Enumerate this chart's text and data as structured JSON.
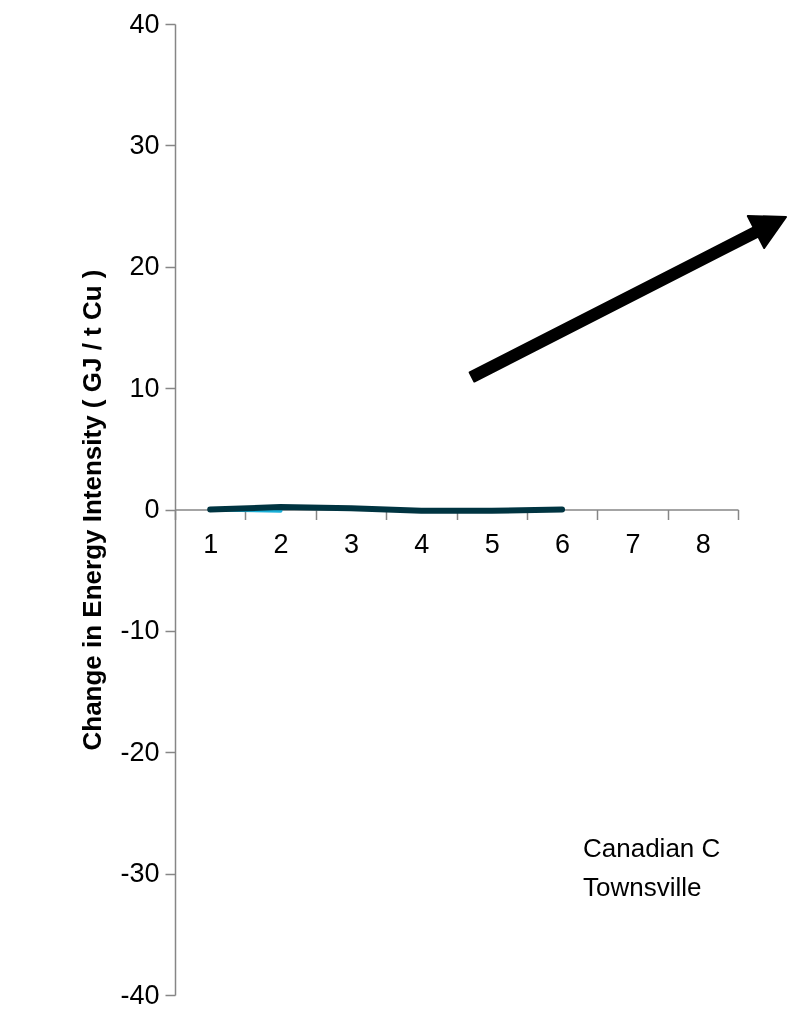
{
  "chart_data": {
    "type": "line",
    "ylabel": "Change in Energy Intensity ( GJ / t Cu )",
    "categories": [
      "1",
      "2",
      "3",
      "4",
      "5",
      "6",
      "7",
      "8"
    ],
    "series": [
      {
        "color": "#1ab0d8",
        "values": [
          0,
          -0.1,
          null,
          null,
          null,
          null,
          null,
          null
        ]
      },
      {
        "color": "#003441",
        "values": [
          0,
          0.2,
          0.1,
          -0.1,
          -0.1,
          0,
          null,
          null
        ]
      }
    ],
    "ylim": [
      -40,
      40
    ],
    "yticks": [
      -40,
      -30,
      -20,
      -10,
      0,
      10,
      20,
      30,
      40
    ],
    "annotations": [
      "Canadian C",
      "Townsville"
    ]
  }
}
